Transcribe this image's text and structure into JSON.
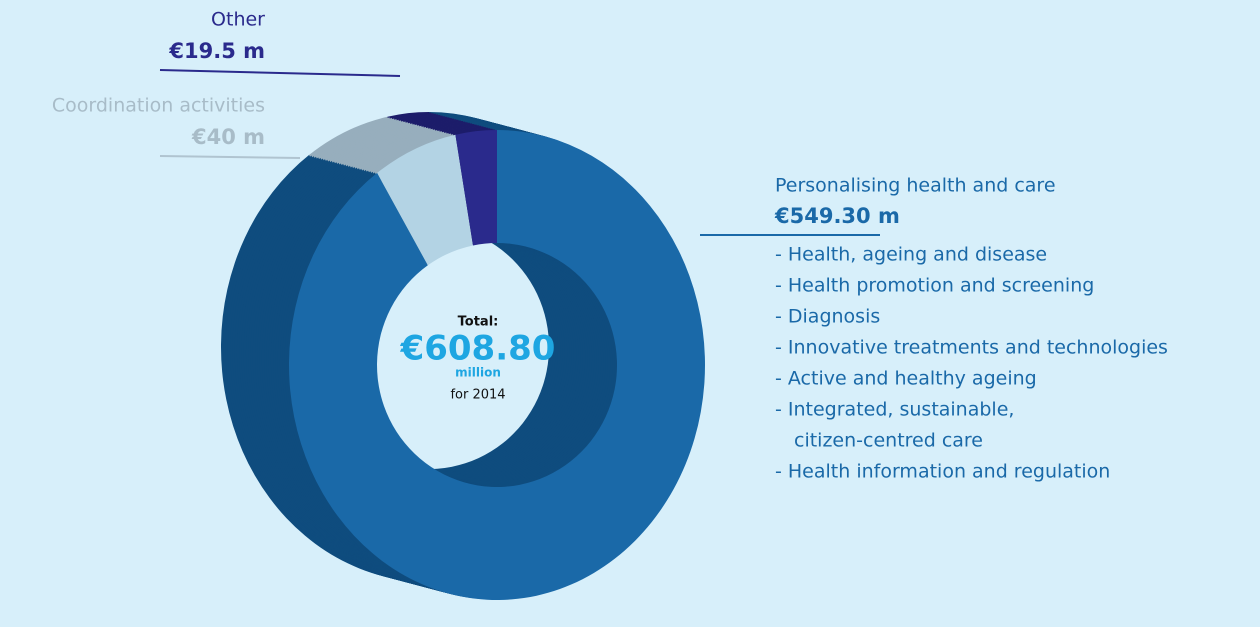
{
  "chart_data": {
    "type": "pie",
    "categories": [
      "Personalising health and care",
      "Coordination activities",
      "Other"
    ],
    "values": [
      549.3,
      40,
      19.5
    ],
    "value_labels": [
      "€549.30 m",
      "€40 m",
      "€19.5 m"
    ],
    "colors": [
      "#1a69a8",
      "#b3d3e4",
      "#2a2a8c"
    ],
    "side_colors": [
      "#0f4c7e",
      "#97aebd",
      "#1d1d6a"
    ],
    "sub_items": [
      "- Health, ageing and disease",
      "- Health promotion and screening",
      "- Diagnosis",
      "- Innovative treatments and technologies",
      "- Active and healthy ageing",
      "- Integrated, sustainable,",
      "citizen-centred care",
      "- Health information and regulation"
    ],
    "center_label": [
      "Total:",
      "€608.80",
      "million",
      "for 2014"
    ]
  }
}
